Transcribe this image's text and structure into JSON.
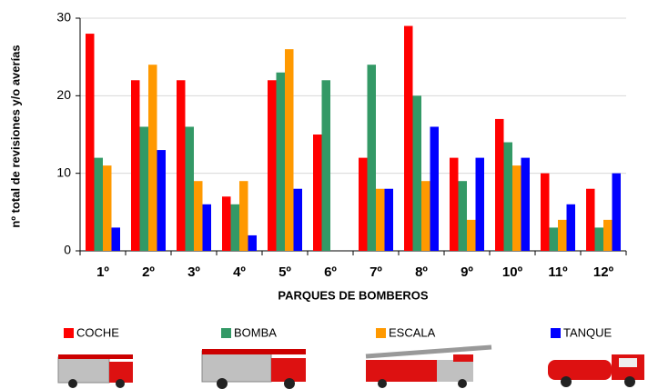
{
  "chart_data": {
    "type": "bar",
    "xlabel": "PARQUES DE BOMBEROS",
    "ylabel": "nº total de revisiones y/o averías",
    "categories": [
      "1º",
      "2º",
      "3º",
      "4º",
      "5º",
      "6º",
      "7º",
      "8º",
      "9º",
      "10º",
      "11º",
      "12º"
    ],
    "series": [
      {
        "name": "COCHE",
        "color": "#ff0000",
        "values": [
          28,
          22,
          22,
          7,
          22,
          15,
          12,
          29,
          12,
          17,
          10,
          8
        ]
      },
      {
        "name": "BOMBA",
        "color": "#339966",
        "values": [
          12,
          16,
          16,
          6,
          23,
          22,
          24,
          20,
          9,
          14,
          3,
          3
        ]
      },
      {
        "name": "ESCALA",
        "color": "#ff9900",
        "values": [
          11,
          24,
          9,
          9,
          26,
          0,
          8,
          9,
          4,
          11,
          4,
          4
        ]
      },
      {
        "name": "TANQUE",
        "color": "#0000ff",
        "values": [
          3,
          13,
          6,
          2,
          8,
          0,
          8,
          16,
          12,
          12,
          6,
          10
        ]
      }
    ],
    "ylim": [
      0,
      30
    ],
    "yticks": [
      0,
      10,
      20,
      30
    ],
    "grid": true
  }
}
